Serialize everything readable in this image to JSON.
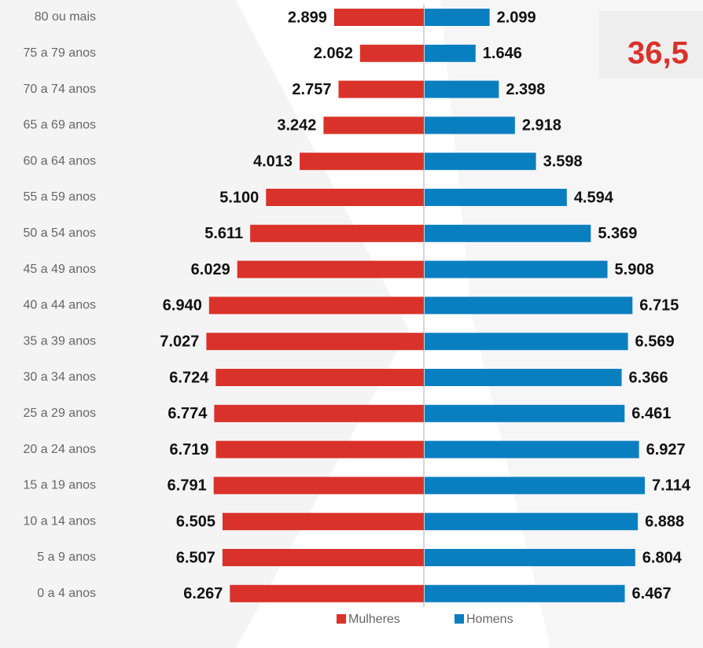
{
  "chart_data": {
    "type": "pyramid",
    "categories": [
      "80 ou mais",
      "75 a 79 anos",
      "70 a 74 anos",
      "65 a 69 anos",
      "60 a 64 anos",
      "55 a 59 anos",
      "50 a 54 anos",
      "45 a 49 anos",
      "40 a 44 anos",
      "35 a 39 anos",
      "30 a 34 anos",
      "25 a 29 anos",
      "20 a 24 anos",
      "15 a 19 anos",
      "10 a 14 anos",
      "5 a 9 anos",
      "0 a 4 anos"
    ],
    "series": [
      {
        "name": "Mulheres",
        "color": "#d9322a",
        "values": [
          2899,
          2062,
          2757,
          3242,
          4013,
          5100,
          5611,
          6029,
          6940,
          7027,
          6724,
          6774,
          6719,
          6791,
          6505,
          6507,
          6267
        ],
        "value_labels": [
          "2.899",
          "2.062",
          "2.757",
          "3.242",
          "4.013",
          "5.100",
          "5.611",
          "6.029",
          "6.940",
          "7.027",
          "6.724",
          "6.774",
          "6.719",
          "6.791",
          "6.505",
          "6.507",
          "6.267"
        ]
      },
      {
        "name": "Homens",
        "color": "#0a7fc0",
        "values": [
          2099,
          1646,
          2398,
          2918,
          3598,
          4594,
          5369,
          5908,
          6715,
          6569,
          6366,
          6461,
          6927,
          7114,
          6888,
          6804,
          6467
        ],
        "value_labels": [
          "2.099",
          "1.646",
          "2.398",
          "2.918",
          "3.598",
          "4.594",
          "5.369",
          "5.908",
          "6.715",
          "6.569",
          "6.366",
          "6.461",
          "6.927",
          "7.114",
          "6.888",
          "6.804",
          "6.467"
        ]
      }
    ],
    "annotation": "36,5"
  }
}
